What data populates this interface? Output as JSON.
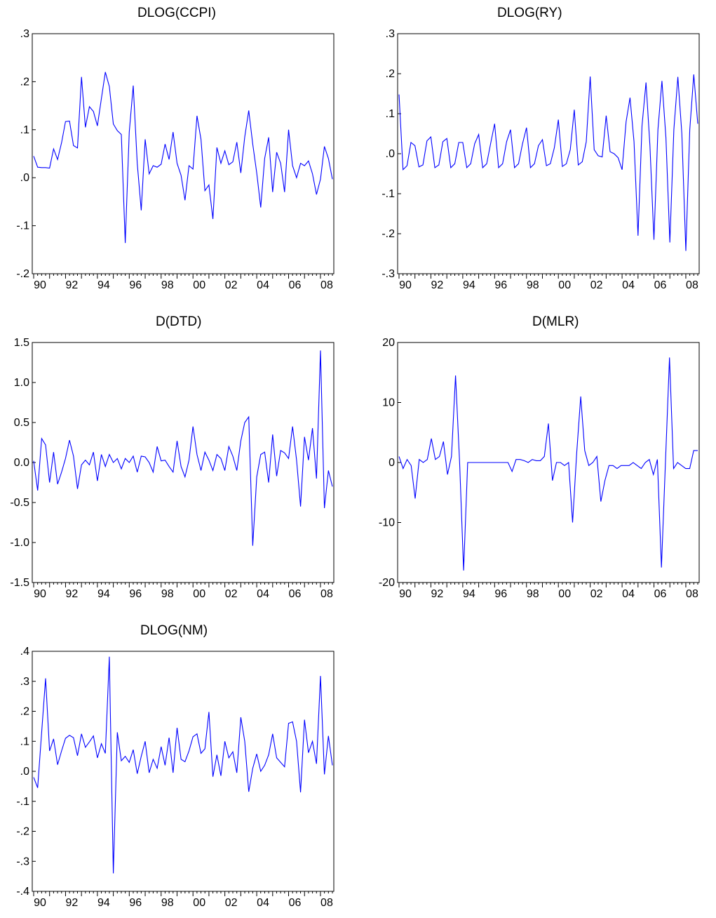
{
  "chart_data": [
    {
      "type": "line",
      "title": "DLOG(CCPI)",
      "xlabel": "",
      "ylabel": "",
      "x_ticks": [
        "90",
        "92",
        "94",
        "96",
        "98",
        "00",
        "02",
        "04",
        "06",
        "08"
      ],
      "y_ticks": [
        ".3",
        ".2",
        ".1",
        ".0",
        "-.1",
        "-.2"
      ],
      "ylim": [
        -0.2,
        0.3
      ],
      "x_range": [
        "1990Q1",
        "2008Q4"
      ],
      "frequency": "quarterly",
      "grid": false,
      "legend": "none",
      "line_color": "#0000ff",
      "series": [
        {
          "values": [
            0.045,
            0.022,
            0.021,
            0.021,
            0.02,
            0.06,
            0.038,
            0.073,
            0.117,
            0.118,
            0.067,
            0.062,
            0.21,
            0.105,
            0.148,
            0.138,
            0.108,
            0.165,
            0.22,
            0.19,
            0.112,
            0.098,
            0.09,
            -0.136,
            0.095,
            0.192,
            0.03,
            -0.068,
            0.08,
            0.008,
            0.025,
            0.022,
            0.028,
            0.07,
            0.038,
            0.095,
            0.03,
            0.005,
            -0.047,
            0.025,
            0.018,
            0.129,
            0.08,
            -0.027,
            -0.015,
            -0.086,
            0.063,
            0.03,
            0.056,
            0.027,
            0.033,
            0.074,
            0.01,
            0.085,
            0.14,
            0.07,
            0.01,
            -0.062,
            0.04,
            0.084,
            -0.03,
            0.053,
            0.03,
            -0.03,
            0.1,
            0.025,
            0.0,
            0.03,
            0.025,
            0.035,
            0.008,
            -0.035,
            -0.003,
            0.065,
            0.04,
            -0.003
          ]
        }
      ]
    },
    {
      "type": "line",
      "title": "DLOG(RY)",
      "xlabel": "",
      "ylabel": "",
      "x_ticks": [
        "90",
        "92",
        "94",
        "96",
        "98",
        "00",
        "02",
        "04",
        "06",
        "08"
      ],
      "y_ticks": [
        ".3",
        ".2",
        ".1",
        ".0",
        "-.1",
        "-.2",
        "-.3"
      ],
      "ylim": [
        -0.3,
        0.3
      ],
      "x_range": [
        "1990Q1",
        "2008Q4"
      ],
      "frequency": "quarterly",
      "grid": false,
      "legend": "none",
      "line_color": "#0000ff",
      "series": [
        {
          "values": [
            0.148,
            -0.04,
            -0.03,
            0.028,
            0.02,
            -0.033,
            -0.028,
            0.032,
            0.042,
            -0.035,
            -0.028,
            0.03,
            0.038,
            -0.035,
            -0.025,
            0.028,
            0.028,
            -0.035,
            -0.025,
            0.025,
            0.048,
            -0.035,
            -0.025,
            0.025,
            0.075,
            -0.035,
            -0.025,
            0.03,
            0.06,
            -0.035,
            -0.025,
            0.025,
            0.065,
            -0.035,
            -0.025,
            0.02,
            0.035,
            -0.03,
            -0.025,
            0.015,
            0.085,
            -0.032,
            -0.025,
            0.01,
            0.11,
            -0.028,
            -0.02,
            0.03,
            0.193,
            0.01,
            -0.005,
            -0.008,
            0.095,
            0.005,
            0.0,
            -0.01,
            -0.04,
            0.08,
            0.14,
            0.03,
            -0.205,
            0.07,
            0.178,
            0.02,
            -0.215,
            0.06,
            0.182,
            0.04,
            -0.222,
            0.06,
            0.192,
            0.05,
            -0.243,
            0.06,
            0.198,
            0.075
          ]
        }
      ]
    },
    {
      "type": "line",
      "title": "D(DTD)",
      "xlabel": "",
      "ylabel": "",
      "x_ticks": [
        "90",
        "92",
        "94",
        "96",
        "98",
        "00",
        "02",
        "04",
        "06",
        "08"
      ],
      "y_ticks": [
        "1.5",
        "1.0",
        "0.5",
        "0.0",
        "-0.5",
        "-1.0",
        "-1.5"
      ],
      "ylim": [
        -1.5,
        1.5
      ],
      "x_range": [
        "1990Q1",
        "2008Q4"
      ],
      "frequency": "quarterly",
      "grid": false,
      "legend": "none",
      "line_color": "#0000ff",
      "series": [
        {
          "values": [
            0.02,
            -0.35,
            0.3,
            0.22,
            -0.25,
            0.13,
            -0.27,
            -0.12,
            0.05,
            0.28,
            0.08,
            -0.33,
            -0.03,
            0.03,
            -0.03,
            0.13,
            -0.23,
            0.1,
            -0.05,
            0.1,
            0.0,
            0.05,
            -0.08,
            0.05,
            0.0,
            0.08,
            -0.12,
            0.08,
            0.07,
            0.0,
            -0.12,
            0.2,
            0.02,
            0.03,
            -0.05,
            -0.12,
            0.27,
            -0.05,
            -0.18,
            0.03,
            0.45,
            0.1,
            -0.1,
            0.13,
            0.03,
            -0.1,
            0.1,
            0.05,
            -0.1,
            0.2,
            0.08,
            -0.1,
            0.27,
            0.5,
            0.57,
            -1.04,
            -0.18,
            0.1,
            0.13,
            -0.25,
            0.35,
            -0.17,
            0.15,
            0.12,
            0.05,
            0.45,
            0.03,
            -0.55,
            0.32,
            0.03,
            0.43,
            -0.2,
            1.4,
            -0.57,
            -0.1,
            -0.3
          ]
        }
      ]
    },
    {
      "type": "line",
      "title": "D(MLR)",
      "xlabel": "",
      "ylabel": "",
      "x_ticks": [
        "90",
        "92",
        "94",
        "96",
        "98",
        "00",
        "02",
        "04",
        "06",
        "08"
      ],
      "y_ticks": [
        "20",
        "10",
        "0",
        "-10",
        "-20"
      ],
      "ylim": [
        -20,
        20
      ],
      "x_range": [
        "1990Q1",
        "2008Q4"
      ],
      "frequency": "quarterly",
      "grid": false,
      "legend": "none",
      "line_color": "#0000ff",
      "series": [
        {
          "values": [
            1.0,
            -1.0,
            0.5,
            -0.5,
            -6.0,
            0.5,
            0.0,
            0.5,
            4.0,
            0.5,
            1.0,
            3.5,
            -2.0,
            1.0,
            14.5,
            0.0,
            -18.0,
            0.0,
            0.0,
            0.0,
            0.0,
            0.0,
            0.0,
            0.0,
            0.0,
            0.0,
            0.0,
            0.0,
            -1.5,
            0.5,
            0.5,
            0.3,
            0.0,
            0.5,
            0.3,
            0.3,
            1.0,
            6.5,
            -3.0,
            0.0,
            0.0,
            -0.5,
            0.0,
            -10.0,
            1.5,
            11.0,
            2.0,
            -0.5,
            0.0,
            1.0,
            -6.5,
            -3.0,
            -0.5,
            -0.5,
            -1.0,
            -0.5,
            -0.5,
            -0.5,
            0.0,
            -0.5,
            -1.0,
            0.0,
            0.5,
            -2.0,
            0.5,
            -17.5,
            0.0,
            17.5,
            -1.0,
            0.0,
            -0.5,
            -1.0,
            -1.0,
            2.0,
            2.0
          ]
        }
      ]
    },
    {
      "type": "line",
      "title": "DLOG(NM)",
      "xlabel": "",
      "ylabel": "",
      "x_ticks": [
        "90",
        "92",
        "94",
        "96",
        "98",
        "00",
        "02",
        "04",
        "06",
        "08"
      ],
      "y_ticks": [
        ".4",
        ".3",
        ".2",
        ".1",
        ".0",
        "-.1",
        "-.2",
        "-.3",
        "-.4"
      ],
      "ylim": [
        -0.4,
        0.4
      ],
      "x_range": [
        "1990Q1",
        "2008Q4"
      ],
      "frequency": "quarterly",
      "grid": false,
      "legend": "none",
      "line_color": "#0000ff",
      "series": [
        {
          "values": [
            -0.02,
            -0.055,
            0.13,
            0.31,
            0.068,
            0.108,
            0.022,
            0.068,
            0.11,
            0.12,
            0.112,
            0.052,
            0.125,
            0.08,
            0.098,
            0.118,
            0.045,
            0.092,
            0.06,
            0.382,
            -0.34,
            0.13,
            0.035,
            0.05,
            0.03,
            0.072,
            -0.008,
            0.05,
            0.1,
            -0.005,
            0.04,
            0.01,
            0.082,
            0.02,
            0.112,
            -0.005,
            0.145,
            0.04,
            0.032,
            0.068,
            0.115,
            0.125,
            0.06,
            0.075,
            0.198,
            -0.018,
            0.055,
            -0.015,
            0.1,
            0.045,
            0.065,
            -0.005,
            0.18,
            0.1,
            -0.068,
            0.01,
            0.058,
            0.0,
            0.02,
            0.055,
            0.125,
            0.045,
            0.03,
            0.015,
            0.16,
            0.165,
            0.1,
            -0.07,
            0.172,
            0.062,
            0.1,
            0.025,
            0.318,
            -0.01,
            0.118,
            0.02
          ]
        }
      ]
    }
  ]
}
